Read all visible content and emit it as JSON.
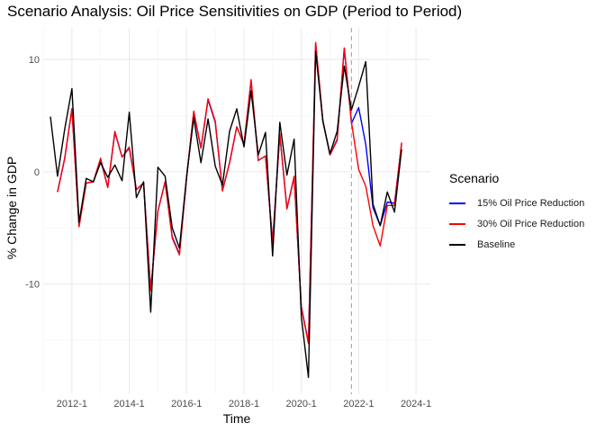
{
  "chart_data": {
    "type": "line",
    "title": "Scenario Analysis: Oil Price Sensitivities on GDP (Period to Period)",
    "xlabel": "Time",
    "ylabel": "% Change in GDP",
    "xlim": [
      2011.0,
      2024.5
    ],
    "ylim": [
      -19.8,
      12.8
    ],
    "x_ticks": [
      {
        "value": 2012.0,
        "label": "2012-1"
      },
      {
        "value": 2014.0,
        "label": "2014-1"
      },
      {
        "value": 2016.0,
        "label": "2016-1"
      },
      {
        "value": 2018.0,
        "label": "2018-1"
      },
      {
        "value": 2020.0,
        "label": "2020-1"
      },
      {
        "value": 2022.0,
        "label": "2022-1"
      },
      {
        "value": 2024.0,
        "label": "2024-1"
      }
    ],
    "y_ticks": [
      {
        "value": 10,
        "label": "10"
      },
      {
        "value": 0,
        "label": "0"
      },
      {
        "value": -10,
        "label": "-10"
      }
    ],
    "grid": true,
    "vline": {
      "x": 2021.75,
      "style": "dashed",
      "color": "#aaaaaa"
    },
    "legend": {
      "title": "Scenario",
      "position": "right"
    },
    "series": [
      {
        "name": "15% Oil Price Reduction",
        "color": "#0000ff",
        "points": [
          [
            2011.5,
            -1.8
          ],
          [
            2011.75,
            1.2
          ],
          [
            2012.0,
            5.6
          ],
          [
            2012.25,
            -4.8
          ],
          [
            2012.5,
            -1.0
          ],
          [
            2012.75,
            -0.9
          ],
          [
            2013.0,
            1.1
          ],
          [
            2013.25,
            -1.4
          ],
          [
            2013.5,
            3.5
          ],
          [
            2013.75,
            1.3
          ],
          [
            2014.0,
            2.1
          ],
          [
            2014.25,
            -1.6
          ],
          [
            2014.5,
            -1.0
          ],
          [
            2014.75,
            -10.5
          ],
          [
            2015.0,
            -3.5
          ],
          [
            2015.25,
            -0.9
          ],
          [
            2015.5,
            -5.8
          ],
          [
            2015.75,
            -7.3
          ],
          [
            2016.0,
            -0.5
          ],
          [
            2016.25,
            5.3
          ],
          [
            2016.5,
            2.1
          ],
          [
            2016.75,
            6.4
          ],
          [
            2017.0,
            4.4
          ],
          [
            2017.25,
            -1.7
          ],
          [
            2017.5,
            0.8
          ],
          [
            2017.75,
            4.0
          ],
          [
            2018.0,
            2.4
          ],
          [
            2018.25,
            8.1
          ],
          [
            2018.5,
            1.0
          ],
          [
            2018.75,
            1.4
          ],
          [
            2019.0,
            -6.2
          ],
          [
            2019.25,
            3.3
          ],
          [
            2019.5,
            -3.3
          ],
          [
            2019.75,
            -0.5
          ],
          [
            2020.0,
            -12.0
          ],
          [
            2020.25,
            -15.2
          ],
          [
            2020.5,
            11.4
          ],
          [
            2020.75,
            4.5
          ],
          [
            2021.0,
            1.5
          ],
          [
            2021.25,
            2.8
          ],
          [
            2021.5,
            11.0
          ],
          [
            2021.75,
            4.3
          ],
          [
            2022.0,
            5.7
          ],
          [
            2022.25,
            2.4
          ],
          [
            2022.5,
            -3.2
          ],
          [
            2022.75,
            -4.8
          ],
          [
            2023.0,
            -2.7
          ],
          [
            2023.25,
            -2.8
          ],
          [
            2023.5,
            2.5
          ]
        ]
      },
      {
        "name": "30% Oil Price Reduction",
        "color": "#ff0000",
        "points": [
          [
            2011.5,
            -1.8
          ],
          [
            2011.75,
            1.2
          ],
          [
            2012.0,
            5.6
          ],
          [
            2012.25,
            -4.9
          ],
          [
            2012.5,
            -1.0
          ],
          [
            2012.75,
            -0.9
          ],
          [
            2013.0,
            1.2
          ],
          [
            2013.25,
            -1.4
          ],
          [
            2013.5,
            3.6
          ],
          [
            2013.75,
            1.3
          ],
          [
            2014.0,
            2.2
          ],
          [
            2014.25,
            -1.6
          ],
          [
            2014.5,
            -1.0
          ],
          [
            2014.75,
            -10.6
          ],
          [
            2015.0,
            -3.5
          ],
          [
            2015.25,
            -0.9
          ],
          [
            2015.5,
            -5.9
          ],
          [
            2015.75,
            -7.4
          ],
          [
            2016.0,
            -0.5
          ],
          [
            2016.25,
            5.4
          ],
          [
            2016.5,
            2.1
          ],
          [
            2016.75,
            6.5
          ],
          [
            2017.0,
            4.5
          ],
          [
            2017.25,
            -1.7
          ],
          [
            2017.5,
            0.8
          ],
          [
            2017.75,
            4.0
          ],
          [
            2018.0,
            2.4
          ],
          [
            2018.25,
            8.2
          ],
          [
            2018.5,
            1.0
          ],
          [
            2018.75,
            1.4
          ],
          [
            2019.0,
            -6.3
          ],
          [
            2019.25,
            3.4
          ],
          [
            2019.5,
            -3.3
          ],
          [
            2019.75,
            -0.4
          ],
          [
            2020.0,
            -12.1
          ],
          [
            2020.25,
            -15.3
          ],
          [
            2020.5,
            11.5
          ],
          [
            2020.75,
            4.6
          ],
          [
            2021.0,
            1.5
          ],
          [
            2021.25,
            2.9
          ],
          [
            2021.5,
            11.0
          ],
          [
            2021.75,
            4.4
          ],
          [
            2022.0,
            0.2
          ],
          [
            2022.25,
            -1.3
          ],
          [
            2022.5,
            -4.8
          ],
          [
            2022.75,
            -6.6
          ],
          [
            2023.0,
            -3.0
          ],
          [
            2023.25,
            -3.0
          ],
          [
            2023.5,
            2.6
          ]
        ]
      },
      {
        "name": "Baseline",
        "color": "#000000",
        "points": [
          [
            2011.25,
            4.9
          ],
          [
            2011.5,
            -0.4
          ],
          [
            2011.75,
            3.8
          ],
          [
            2012.0,
            7.4
          ],
          [
            2012.25,
            -4.5
          ],
          [
            2012.5,
            -0.6
          ],
          [
            2012.75,
            -0.9
          ],
          [
            2013.0,
            0.8
          ],
          [
            2013.25,
            -0.5
          ],
          [
            2013.5,
            0.6
          ],
          [
            2013.75,
            -0.8
          ],
          [
            2014.0,
            5.3
          ],
          [
            2014.25,
            -2.3
          ],
          [
            2014.5,
            -0.9
          ],
          [
            2014.75,
            -12.5
          ],
          [
            2015.0,
            0.4
          ],
          [
            2015.25,
            -0.4
          ],
          [
            2015.5,
            -5.0
          ],
          [
            2015.75,
            -6.8
          ],
          [
            2016.0,
            -0.4
          ],
          [
            2016.25,
            4.8
          ],
          [
            2016.5,
            0.8
          ],
          [
            2016.75,
            4.7
          ],
          [
            2017.0,
            0.5
          ],
          [
            2017.25,
            -1.2
          ],
          [
            2017.5,
            3.6
          ],
          [
            2017.75,
            5.6
          ],
          [
            2018.0,
            2.2
          ],
          [
            2018.25,
            7.2
          ],
          [
            2018.5,
            1.5
          ],
          [
            2018.75,
            3.5
          ],
          [
            2019.0,
            -7.5
          ],
          [
            2019.25,
            4.4
          ],
          [
            2019.5,
            -0.3
          ],
          [
            2019.75,
            2.9
          ],
          [
            2020.0,
            -12.9
          ],
          [
            2020.25,
            -18.3
          ],
          [
            2020.5,
            10.7
          ],
          [
            2020.75,
            4.5
          ],
          [
            2021.0,
            1.6
          ],
          [
            2021.25,
            3.6
          ],
          [
            2021.5,
            9.4
          ],
          [
            2021.75,
            5.5
          ],
          [
            2022.0,
            7.6
          ],
          [
            2022.25,
            9.8
          ],
          [
            2022.5,
            -2.9
          ],
          [
            2022.75,
            -4.8
          ],
          [
            2023.0,
            -1.8
          ],
          [
            2023.25,
            -3.6
          ],
          [
            2023.5,
            2.0
          ]
        ]
      }
    ]
  }
}
